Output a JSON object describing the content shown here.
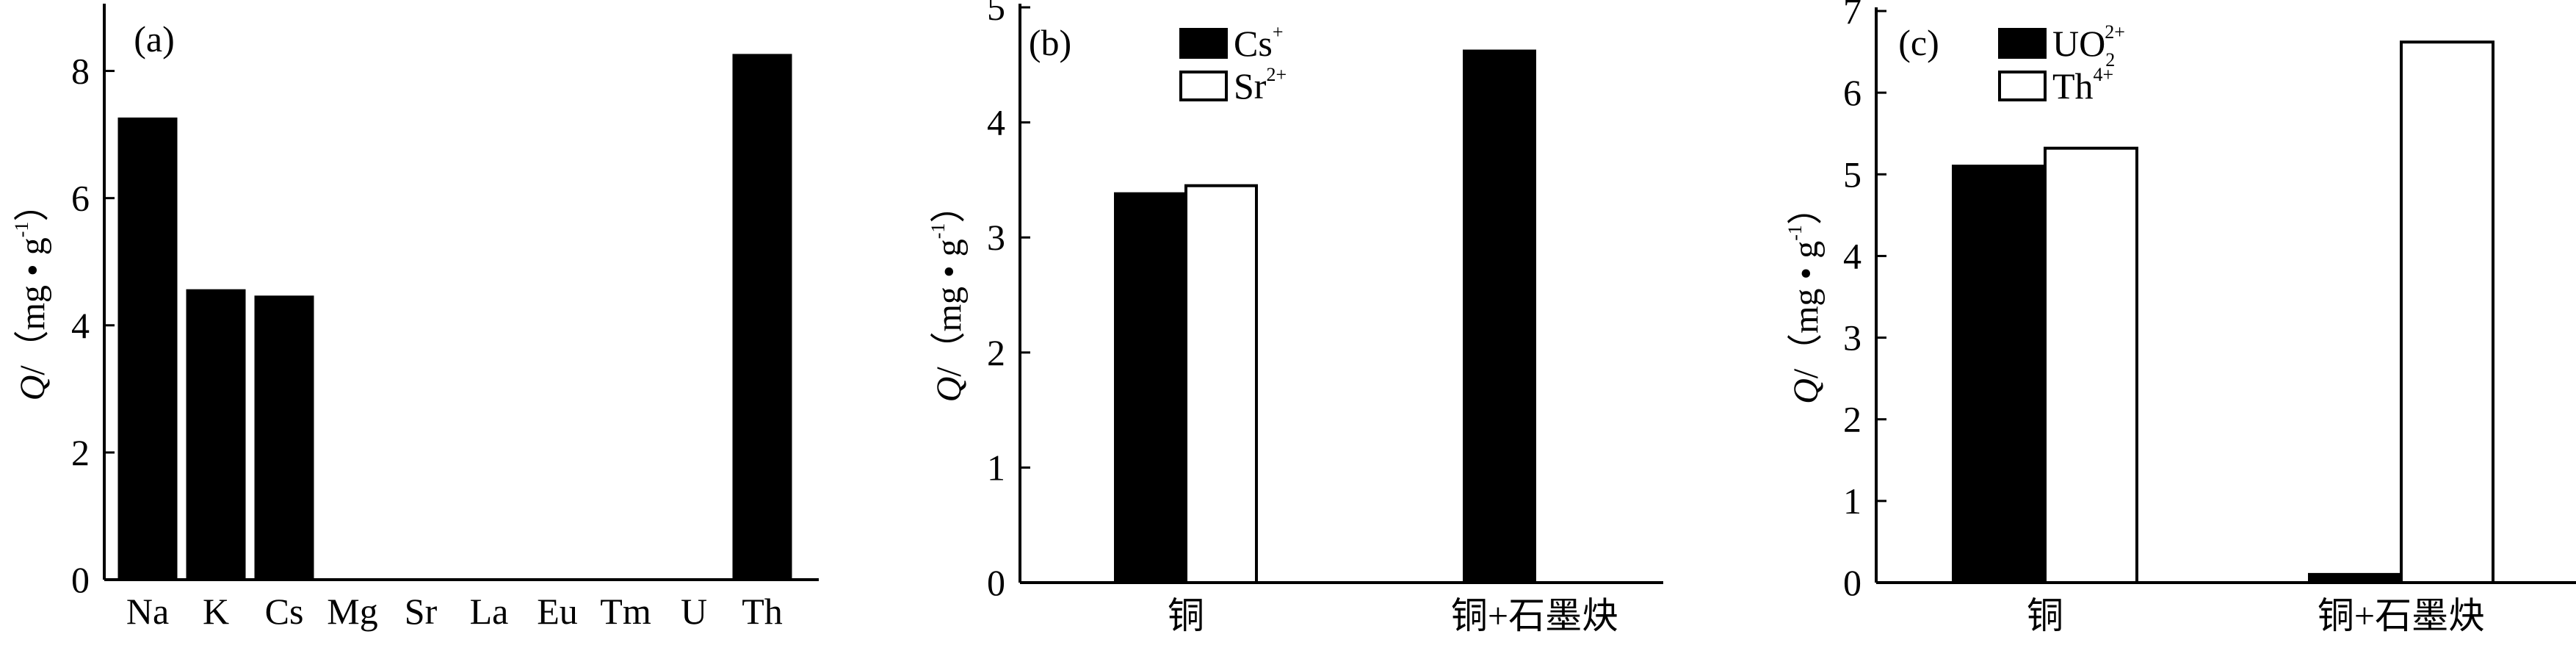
{
  "chart_data": [
    {
      "panel": "(a)",
      "type": "bar",
      "ylabel": {
        "italic": "Q",
        "rest": "/（mg • g",
        "sup": "-1",
        "close": "）"
      },
      "ylim": [
        0,
        9
      ],
      "yticks": [
        "0",
        "2",
        "4",
        "6",
        "8"
      ],
      "categories": [
        "Na",
        "K",
        "Cs",
        "Mg",
        "Sr",
        "La",
        "Eu",
        "Tm",
        "U",
        "Th"
      ],
      "series": [
        {
          "color": "#000000",
          "values": [
            7.25,
            4.55,
            4.45,
            0,
            0,
            0,
            0,
            0,
            0,
            8.25
          ]
        }
      ],
      "grid": false
    },
    {
      "panel": "(b)",
      "type": "bar",
      "ylabel": {
        "italic": "Q",
        "rest": "/（mg • g",
        "sup": "-1",
        "close": "）"
      },
      "ylim": [
        0,
        5
      ],
      "yticks": [
        "0",
        "1",
        "2",
        "3",
        "4",
        "5"
      ],
      "categories": [
        "铜",
        "铜+石墨炔"
      ],
      "series": [
        {
          "name": "Cs",
          "name_sup": "+",
          "color": "#000000",
          "values": [
            3.38,
            4.62
          ]
        },
        {
          "name": "Sr",
          "name_sup": "2+",
          "color": "#ffffff",
          "values": [
            3.45,
            0
          ]
        }
      ],
      "legend": "top-left",
      "grid": false
    },
    {
      "panel": "(c)",
      "type": "bar",
      "ylabel": {
        "italic": "Q",
        "rest": "/（mg • g",
        "sup": "-1",
        "close": "）"
      },
      "ylim": [
        0,
        7
      ],
      "yticks": [
        "0",
        "1",
        "2",
        "3",
        "4",
        "5",
        "6",
        "7"
      ],
      "categories": [
        "铜",
        "铜+石墨炔"
      ],
      "series": [
        {
          "name": "UO",
          "name_sub": "2",
          "name_sup": "2+",
          "color": "#000000",
          "values": [
            5.1,
            0.1
          ]
        },
        {
          "name": "Th",
          "name_sup": "4+",
          "color": "#ffffff",
          "values": [
            5.32,
            6.62
          ]
        }
      ],
      "legend": "top-left",
      "grid": false
    }
  ]
}
